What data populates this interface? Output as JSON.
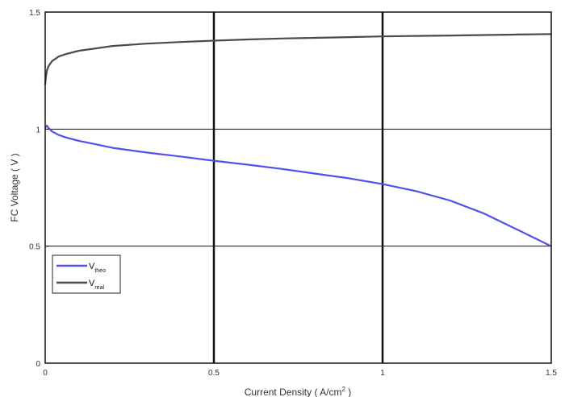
{
  "chart_data": {
    "type": "line",
    "title": "",
    "xlabel": "Current Density ( A/cm",
    "xlabel_sup": "2",
    "xlabel_suffix": " )",
    "ylabel": "FC Voltage ( V )",
    "xlim": [
      0,
      1.5
    ],
    "ylim": [
      0,
      1.5
    ],
    "xticks": [
      0,
      0.5,
      1,
      1.5
    ],
    "xtick_labels": [
      "0",
      "0.5",
      "1",
      "1.5"
    ],
    "yticks": [
      0,
      0.5,
      1,
      1.5
    ],
    "ytick_labels": [
      "0",
      "0.5",
      "1",
      "1.5"
    ],
    "grid": true,
    "legend_position": "lower-left",
    "series": [
      {
        "name": "V",
        "name_sub": "theo",
        "color": "#5050ee",
        "x": [
          0,
          0.005,
          0.01,
          0.02,
          0.04,
          0.06,
          0.1,
          0.15,
          0.2,
          0.3,
          0.4,
          0.5,
          0.6,
          0.7,
          0.8,
          0.9,
          1.0,
          1.1,
          1.2,
          1.3,
          1.4,
          1.45,
          1.5
        ],
        "y": [
          1.005,
          1.015,
          1.005,
          0.99,
          0.975,
          0.965,
          0.95,
          0.935,
          0.92,
          0.9,
          0.883,
          0.865,
          0.848,
          0.83,
          0.81,
          0.79,
          0.765,
          0.735,
          0.695,
          0.64,
          0.57,
          0.535,
          0.5
        ]
      },
      {
        "name": "V",
        "name_sub": "real",
        "color": "#4a4a4a",
        "x": [
          0,
          0.002,
          0.005,
          0.01,
          0.02,
          0.04,
          0.06,
          0.1,
          0.15,
          0.2,
          0.3,
          0.4,
          0.5,
          0.6,
          0.7,
          0.8,
          0.9,
          1.0,
          1.1,
          1.2,
          1.3,
          1.4,
          1.5
        ],
        "y": [
          1.19,
          1.22,
          1.25,
          1.27,
          1.29,
          1.31,
          1.32,
          1.335,
          1.345,
          1.355,
          1.365,
          1.372,
          1.378,
          1.383,
          1.387,
          1.39,
          1.393,
          1.396,
          1.398,
          1.4,
          1.402,
          1.404,
          1.406
        ]
      }
    ]
  }
}
